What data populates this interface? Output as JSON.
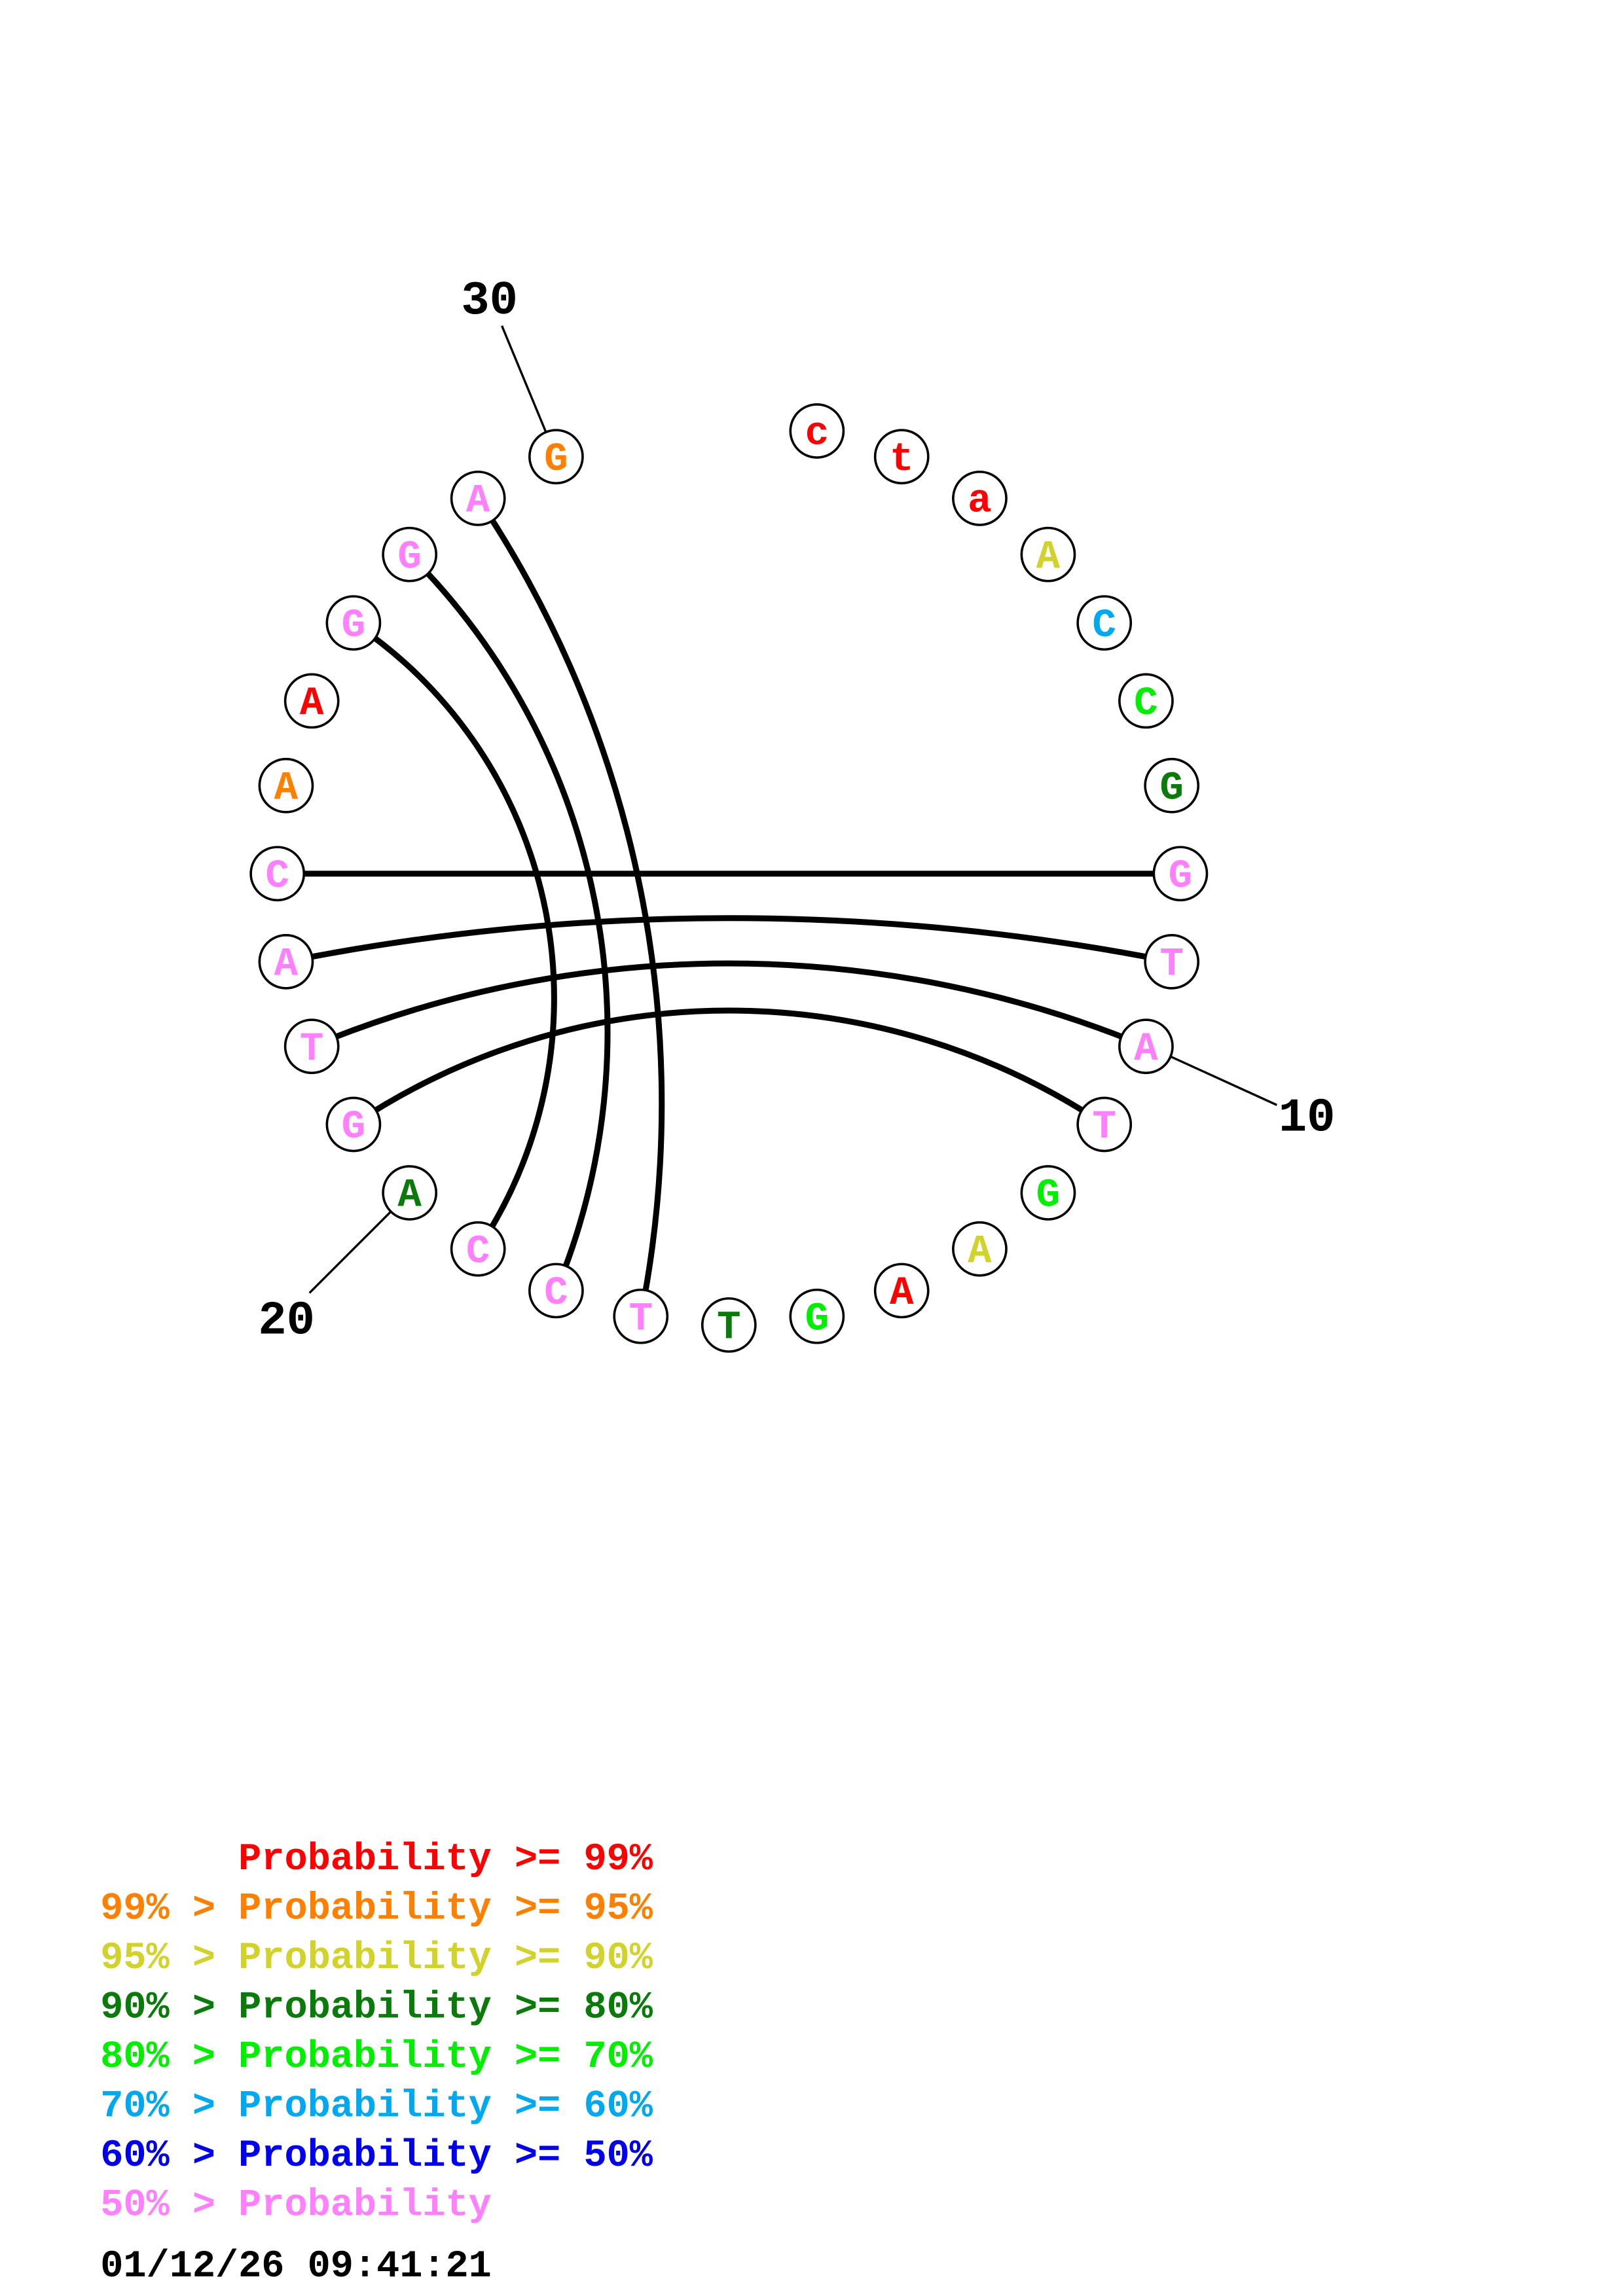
{
  "diagram": {
    "type": "circular-base-pair-plot",
    "nucleotides": [
      {
        "base": "c",
        "prob": "p99"
      },
      {
        "base": "t",
        "prob": "p99"
      },
      {
        "base": "a",
        "prob": "p99"
      },
      {
        "base": "A",
        "prob": "p90"
      },
      {
        "base": "C",
        "prob": "p60"
      },
      {
        "base": "C",
        "prob": "p70"
      },
      {
        "base": "G",
        "prob": "p80"
      },
      {
        "base": "G",
        "prob": "lt50"
      },
      {
        "base": "T",
        "prob": "lt50"
      },
      {
        "base": "A",
        "prob": "lt50"
      },
      {
        "base": "T",
        "prob": "lt50"
      },
      {
        "base": "G",
        "prob": "p70"
      },
      {
        "base": "A",
        "prob": "p90"
      },
      {
        "base": "A",
        "prob": "p99"
      },
      {
        "base": "G",
        "prob": "p70"
      },
      {
        "base": "T",
        "prob": "p80"
      },
      {
        "base": "T",
        "prob": "lt50"
      },
      {
        "base": "C",
        "prob": "lt50"
      },
      {
        "base": "C",
        "prob": "lt50"
      },
      {
        "base": "A",
        "prob": "p80"
      },
      {
        "base": "G",
        "prob": "lt50"
      },
      {
        "base": "T",
        "prob": "lt50"
      },
      {
        "base": "A",
        "prob": "lt50"
      },
      {
        "base": "C",
        "prob": "lt50"
      },
      {
        "base": "A",
        "prob": "p95"
      },
      {
        "base": "A",
        "prob": "p99"
      },
      {
        "base": "G",
        "prob": "lt50"
      },
      {
        "base": "G",
        "prob": "lt50"
      },
      {
        "base": "A",
        "prob": "lt50"
      },
      {
        "base": "G",
        "prob": "p95"
      }
    ],
    "pairs": [
      [
        8,
        24
      ],
      [
        9,
        23
      ],
      [
        10,
        22
      ],
      [
        11,
        21
      ],
      [
        17,
        29
      ],
      [
        18,
        28
      ],
      [
        19,
        27
      ]
    ],
    "position_labels": [
      {
        "index": 10,
        "text": "10"
      },
      {
        "index": 20,
        "text": "20"
      },
      {
        "index": 30,
        "text": "30"
      }
    ]
  },
  "colors": {
    "p99": "#ff0000",
    "p95": "#ff8000",
    "p90": "#d2d22c",
    "p80": "#0a7a0a",
    "p70": "#00ee00",
    "p60": "#00a8f0",
    "p50": "#0000ee",
    "lt50": "#ff80ff",
    "line": "#000000"
  },
  "legend": [
    {
      "text": "      Probability >= 99%",
      "color": "p99"
    },
    {
      "text": "99% > Probability >= 95%",
      "color": "p95"
    },
    {
      "text": "95% > Probability >= 90%",
      "color": "p90"
    },
    {
      "text": "90% > Probability >= 80%",
      "color": "p80"
    },
    {
      "text": "80% > Probability >= 70%",
      "color": "p70"
    },
    {
      "text": "70% > Probability >= 60%",
      "color": "p60"
    },
    {
      "text": "60% > Probability >= 50%",
      "color": "p50"
    },
    {
      "text": "50% > Probability",
      "color": "lt50"
    }
  ],
  "timestamp": "01/12/26 09:41:21"
}
